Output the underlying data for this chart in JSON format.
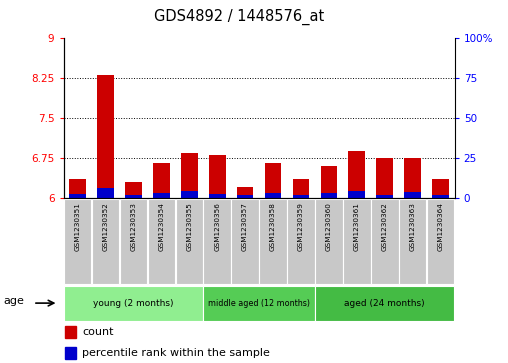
{
  "title": "GDS4892 / 1448576_at",
  "samples": [
    "GSM1230351",
    "GSM1230352",
    "GSM1230353",
    "GSM1230354",
    "GSM1230355",
    "GSM1230356",
    "GSM1230357",
    "GSM1230358",
    "GSM1230359",
    "GSM1230360",
    "GSM1230361",
    "GSM1230362",
    "GSM1230363",
    "GSM1230364"
  ],
  "red_values": [
    6.35,
    8.3,
    6.3,
    6.65,
    6.85,
    6.8,
    6.2,
    6.65,
    6.35,
    6.6,
    6.88,
    6.75,
    6.75,
    6.35
  ],
  "blue_values": [
    6.07,
    6.18,
    6.06,
    6.1,
    6.12,
    6.07,
    6.06,
    6.1,
    6.06,
    6.09,
    6.12,
    6.06,
    6.11,
    6.06
  ],
  "base_value": 6.0,
  "ylim_left": [
    6.0,
    9.0
  ],
  "ylim_right": [
    0,
    100
  ],
  "yticks_left": [
    6,
    6.75,
    7.5,
    8.25,
    9
  ],
  "yticks_right": [
    0,
    25,
    50,
    75,
    100
  ],
  "ytick_labels_left": [
    "6",
    "6.75",
    "7.5",
    "8.25",
    "9"
  ],
  "ytick_labels_right": [
    "0",
    "25",
    "50",
    "75",
    "100%"
  ],
  "hlines": [
    6.75,
    7.5,
    8.25
  ],
  "group_data": [
    {
      "start": 0,
      "end": 4,
      "label": "young (2 months)",
      "color": "#90EE90"
    },
    {
      "start": 5,
      "end": 8,
      "label": "middle aged (12 months)",
      "color": "#55CC55"
    },
    {
      "start": 9,
      "end": 13,
      "label": "aged (24 months)",
      "color": "#44BB44"
    }
  ],
  "bar_width": 0.6,
  "red_color": "#CC0000",
  "blue_color": "#0000CC",
  "age_label": "age",
  "sample_box_color": "#C8C8C8",
  "plot_bg_color": "#FFFFFF"
}
